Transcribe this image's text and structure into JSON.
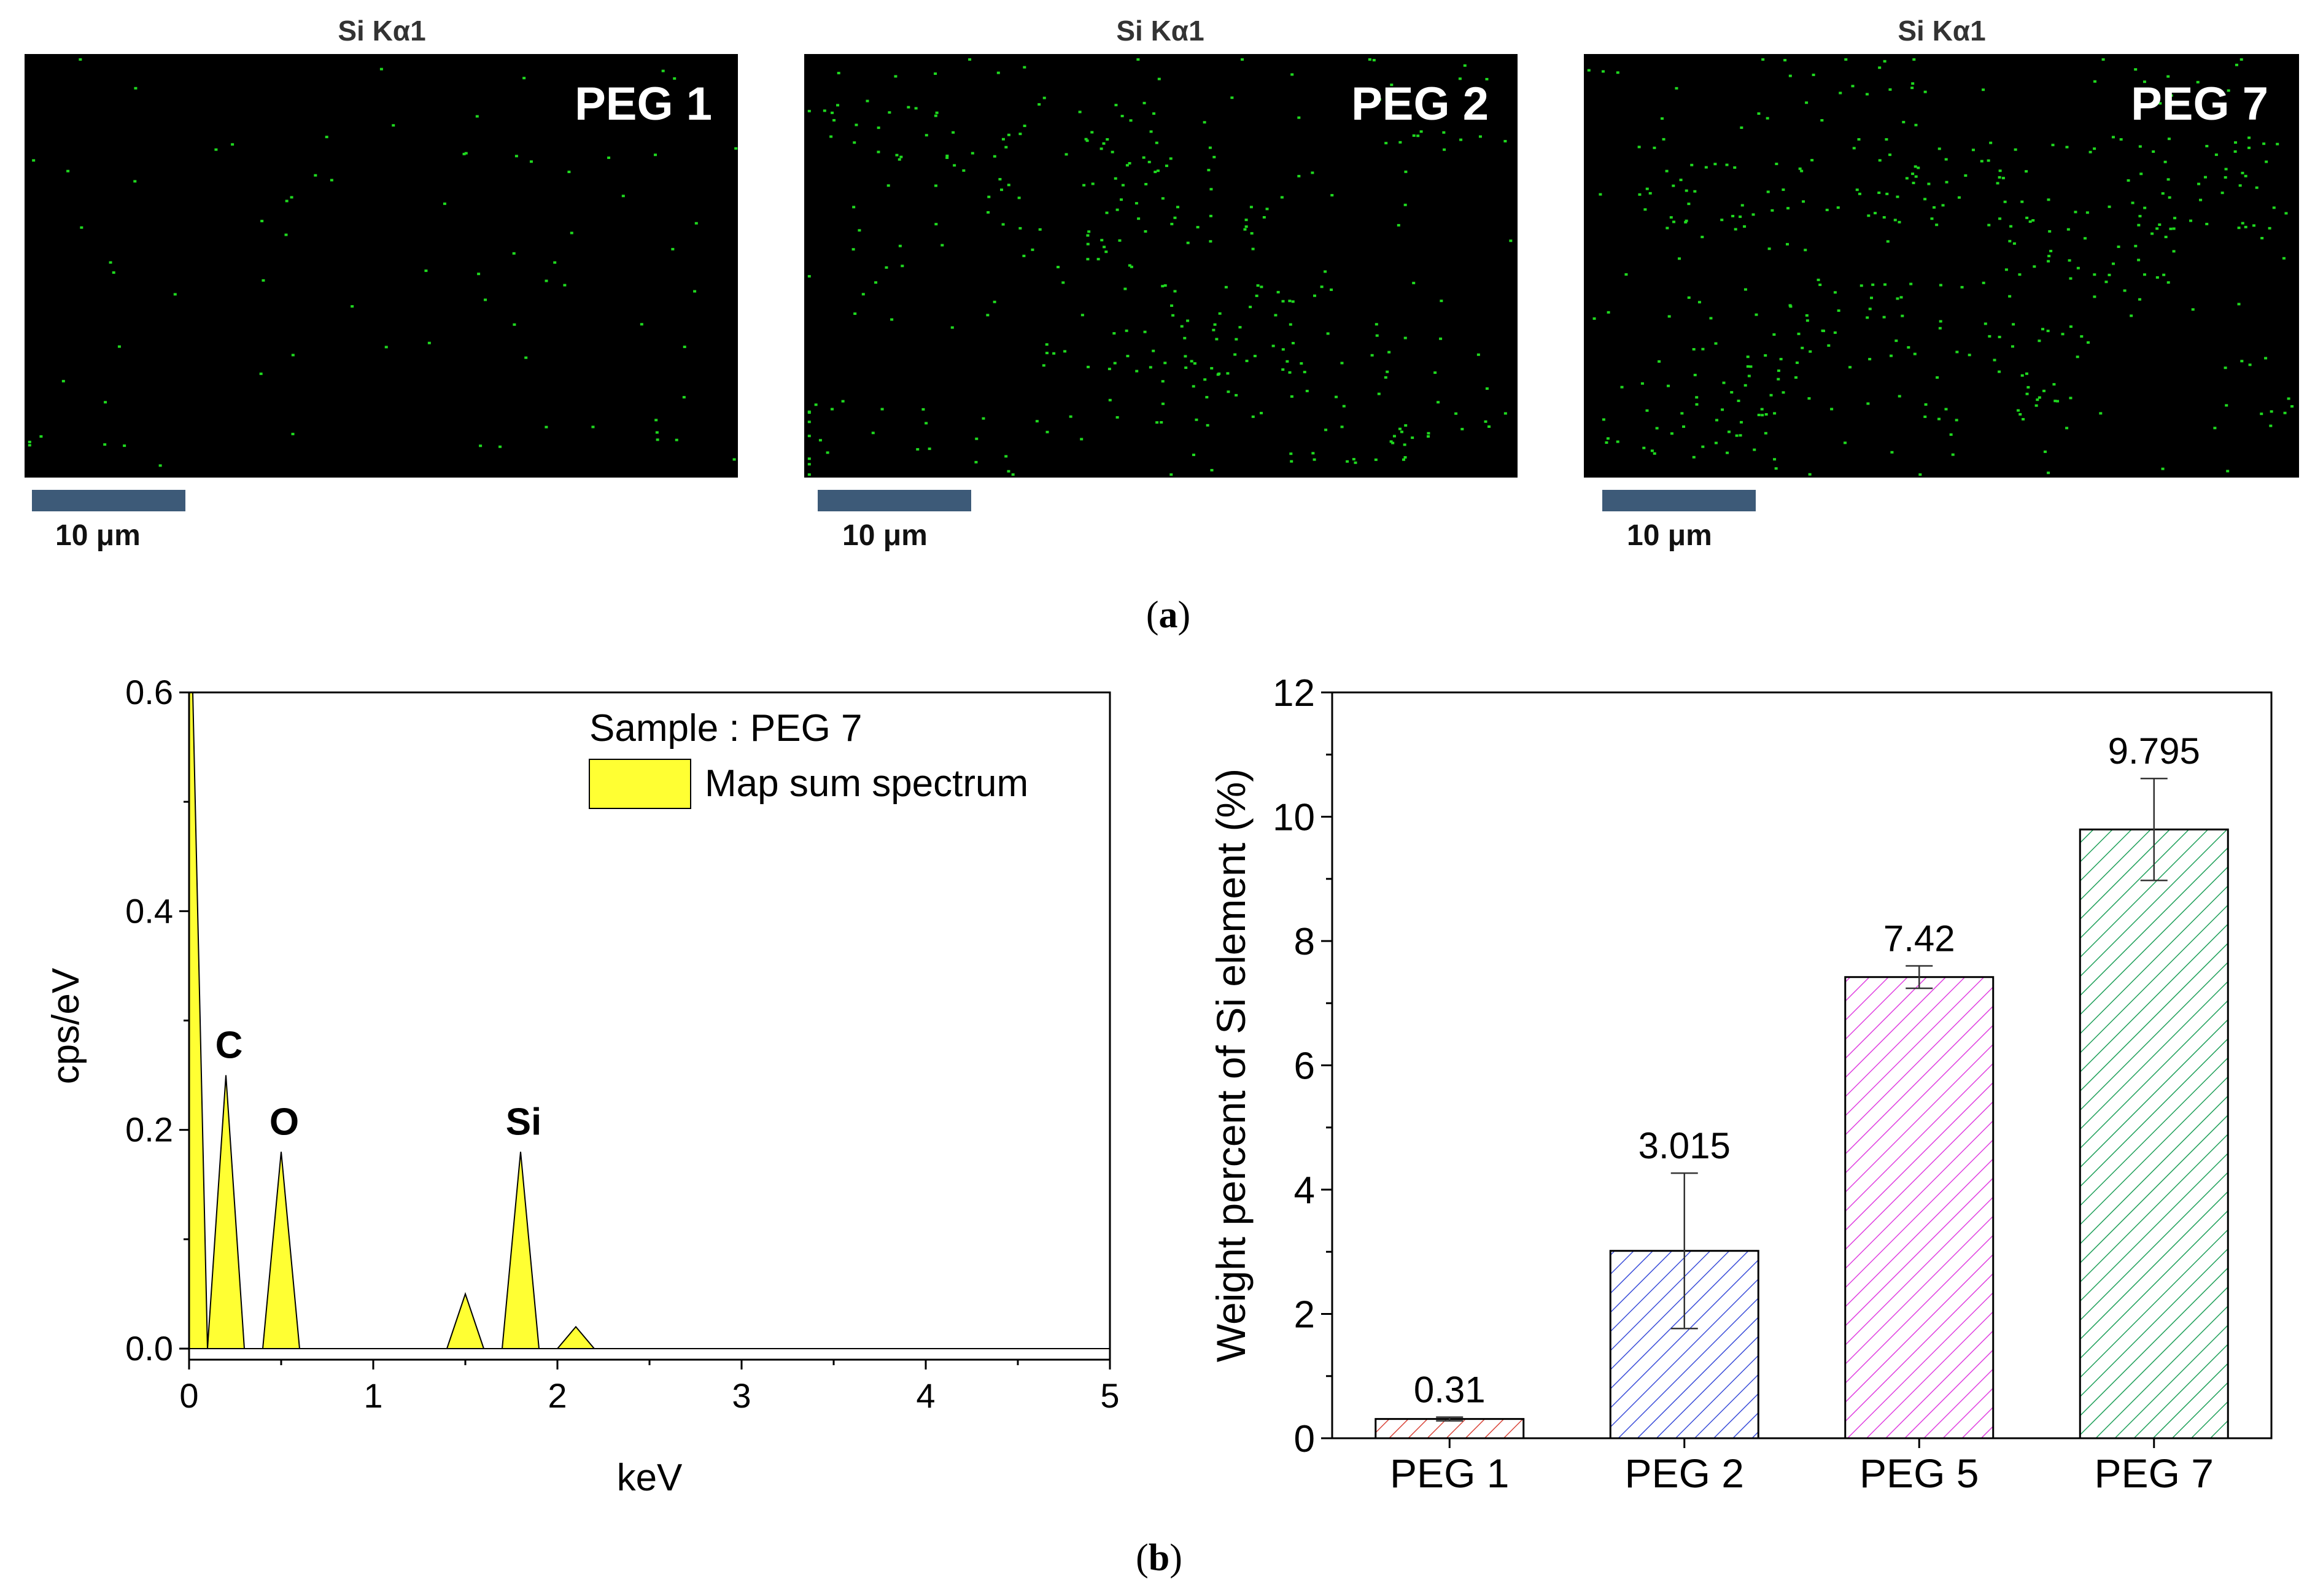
{
  "figure": {
    "panel_a_label_open": "(",
    "panel_a_label_letter": "a",
    "panel_a_label_close": ")",
    "panel_b_label_open": "(",
    "panel_b_label_letter": "b",
    "panel_b_label_close": ")"
  },
  "maps": [
    {
      "title": "Si Kα1",
      "label": "PEG 1",
      "scale_text": "10 μm",
      "dot_count": 75
    },
    {
      "title": "Si Kα1",
      "label": "PEG 2",
      "scale_text": "10 μm",
      "dot_count": 330
    },
    {
      "title": "Si Kα1",
      "label": "PEG 7",
      "scale_text": "10 μm",
      "dot_count": 400
    }
  ],
  "colors": {
    "map_background": "#000000",
    "map_dot": "#1fd81f",
    "map_label": "#ffffff",
    "scale_bar": "#3d5a78",
    "spectrum_fill": "#ffff33",
    "bar_peg1": "#d9463b",
    "bar_peg2": "#3b4ed9",
    "bar_peg5": "#e040e0",
    "bar_peg7": "#1fa05a"
  },
  "chart_data": [
    {
      "type": "area",
      "title": "",
      "xlabel": "keV",
      "ylabel": "cps/eV",
      "xlim": [
        0,
        5
      ],
      "ylim": [
        0,
        0.6
      ],
      "xticks": [
        "0",
        "1",
        "2",
        "3",
        "4",
        "5"
      ],
      "yticks": [
        "0.0",
        "0.2",
        "0.4",
        "0.6"
      ],
      "legend_title": "Sample : PEG 7",
      "legend_entry": "Map sum spectrum",
      "series": [
        {
          "name": "Map sum spectrum",
          "x": [
            0.0,
            0.02,
            0.1,
            0.2,
            0.3,
            0.4,
            0.5,
            0.6,
            1.4,
            1.5,
            1.6,
            1.7,
            1.8,
            1.9,
            2.0,
            2.1,
            2.2,
            5.0
          ],
          "y": [
            0.6,
            0.6,
            0.0,
            0.25,
            0.0,
            0.0,
            0.18,
            0.0,
            0.0,
            0.05,
            0.0,
            0.0,
            0.18,
            0.0,
            0.0,
            0.02,
            0.0,
            0.0
          ]
        }
      ],
      "annotations": [
        {
          "text": "C",
          "x": 0.2,
          "y": 0.25
        },
        {
          "text": "O",
          "x": 0.5,
          "y": 0.18
        },
        {
          "text": "Si",
          "x": 1.8,
          "y": 0.18
        }
      ]
    },
    {
      "type": "bar",
      "title": "",
      "xlabel": "",
      "ylabel": "Weight percent of Si element (%)",
      "ylim": [
        0,
        12
      ],
      "yticks": [
        "0",
        "2",
        "4",
        "6",
        "8",
        "10",
        "12"
      ],
      "categories": [
        "PEG 1",
        "PEG 2",
        "PEG 5",
        "PEG 7"
      ],
      "values": [
        0.31,
        3.015,
        7.42,
        9.795
      ],
      "value_labels": [
        "0.31",
        "3.015",
        "7.42",
        "9.795"
      ],
      "errors": [
        0.03,
        1.25,
        0.18,
        0.82
      ],
      "hatch": "diagonal"
    }
  ]
}
